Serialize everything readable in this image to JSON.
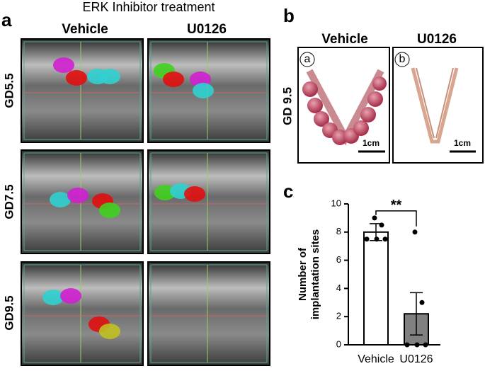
{
  "panel_a": {
    "letter": "a",
    "title": "ERK Inhibitor treatment",
    "columns": [
      "Vehicle",
      "U0126"
    ],
    "rows": [
      "GD5.5",
      "GD7.5",
      "GD9.5"
    ]
  },
  "panel_b": {
    "letter": "b",
    "columns": [
      "Vehicle",
      "U0126"
    ],
    "row_label": "GD 9.5",
    "image_labels": [
      "a",
      "b"
    ],
    "scale_bar": "1cm"
  },
  "chart_data": {
    "type": "bar",
    "panel_letter": "c",
    "ylabel": [
      "Number of",
      "implantation sites"
    ],
    "categories": [
      "Vehicle",
      "U0126"
    ],
    "values": [
      8,
      2.2
    ],
    "errors": [
      0.6,
      1.5
    ],
    "points": [
      [
        9,
        8.5,
        7.5,
        7.5,
        7.5
      ],
      [
        8,
        3,
        0,
        0,
        0
      ]
    ],
    "colors": [
      "#ffffff",
      "#808080"
    ],
    "annotation": "**",
    "ylim": [
      0,
      10
    ],
    "yticks": [
      0,
      2,
      4,
      6,
      8,
      10
    ]
  }
}
